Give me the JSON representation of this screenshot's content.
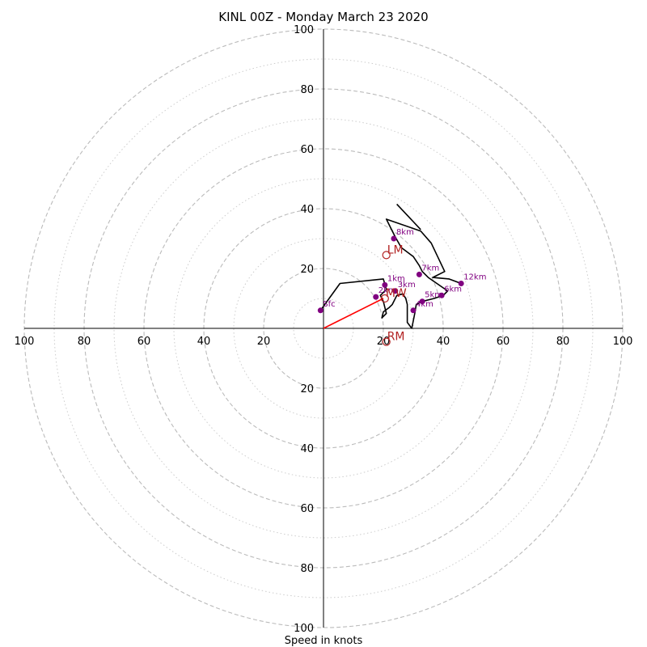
{
  "chart_data": {
    "type": "hodograph",
    "title": "KINL 00Z - Monday March 23 2020",
    "xlabel": "Speed in knots",
    "max_speed": 100,
    "ring_labels": [
      "20",
      "40",
      "60",
      "80",
      "100"
    ],
    "grid": true,
    "colors": {
      "trace": "#000000",
      "height_marker": "#800080",
      "shear_vector": "#ff0000",
      "storm_motion": "#b22222",
      "ring_major": "#bbbbbb",
      "ring_minor": "#cccccc"
    },
    "trace": [
      [
        -1,
        6
      ],
      [
        5.5,
        15
      ],
      [
        20,
        16.5
      ],
      [
        21,
        13
      ],
      [
        19,
        11
      ],
      [
        20,
        9
      ],
      [
        21,
        5
      ],
      [
        19.5,
        3.5
      ],
      [
        20,
        5.5
      ],
      [
        22,
        7
      ],
      [
        23,
        8
      ],
      [
        24.5,
        11
      ],
      [
        26.5,
        11.5
      ],
      [
        27.5,
        10
      ],
      [
        28,
        8
      ],
      [
        28,
        2
      ],
      [
        29.5,
        0
      ],
      [
        30.5,
        5
      ],
      [
        31,
        8
      ],
      [
        33,
        9
      ],
      [
        37,
        10
      ],
      [
        40,
        11
      ],
      [
        41.5,
        12.5
      ],
      [
        35,
        17
      ],
      [
        33,
        19
      ],
      [
        32,
        21
      ],
      [
        30,
        24
      ],
      [
        26,
        27
      ],
      [
        24,
        30.5
      ],
      [
        22,
        34.5
      ],
      [
        21,
        36.5
      ],
      [
        32.5,
        32.5
      ],
      [
        36,
        28.5
      ],
      [
        40.5,
        19
      ],
      [
        36.5,
        17
      ],
      [
        42,
        16.5
      ],
      [
        46,
        15
      ]
    ],
    "segment_upper": [
      [
        32.5,
        33
      ],
      [
        24.5,
        41.5
      ]
    ],
    "height_points": [
      {
        "label": "Sfc",
        "u": -1,
        "v": 6
      },
      {
        "label": "1km",
        "u": 20.5,
        "v": 14.5
      },
      {
        "label": "2km",
        "u": 17.5,
        "v": 10.5
      },
      {
        "label": "3km",
        "u": 24,
        "v": 12.5
      },
      {
        "label": "4km",
        "u": 30,
        "v": 6
      },
      {
        "label": "5km",
        "u": 33,
        "v": 9
      },
      {
        "label": "6km",
        "u": 39.5,
        "v": 11
      },
      {
        "label": "7km",
        "u": 32,
        "v": 18
      },
      {
        "label": "8km",
        "u": 23.5,
        "v": 30
      },
      {
        "label": "12km",
        "u": 46,
        "v": 15
      }
    ],
    "storm_motion": [
      {
        "label": "LM",
        "u": 21,
        "v": 24.5
      },
      {
        "label": "RM",
        "u": 21,
        "v": -4.5
      },
      {
        "label": "MW",
        "u": 20.5,
        "v": 10
      }
    ],
    "shear_vector": {
      "from": [
        0,
        0
      ],
      "to": [
        20,
        10
      ]
    }
  }
}
